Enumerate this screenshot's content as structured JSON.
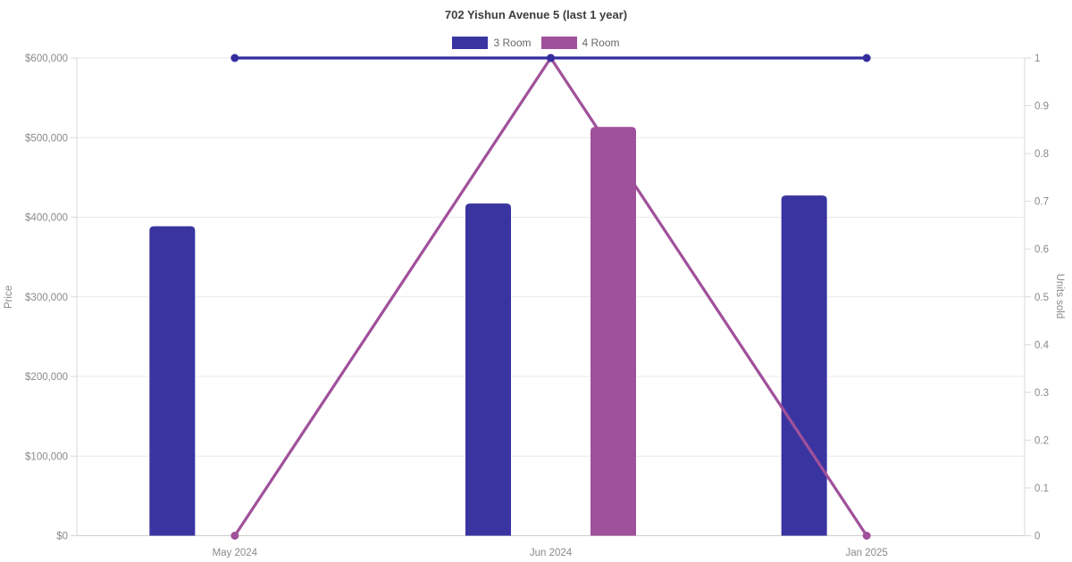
{
  "page": {
    "title": "702 Yishun Avenue 5 (last 1 year)"
  },
  "chart_data": {
    "type": "bar",
    "title": "702 Yishun Avenue 5 (last 1 year)",
    "subtitle": "",
    "categories": [
      "May 2024",
      "Jun 2024",
      "Jan 2025"
    ],
    "bar_series": [
      {
        "name": "3 Room",
        "color": "#3a34a1",
        "axis": "left",
        "values": [
          388600,
          417200,
          427300
        ]
      },
      {
        "name": "4 Room",
        "color": "#a0519b",
        "axis": "left",
        "values": [
          null,
          513500,
          null
        ]
      }
    ],
    "line_series": [
      {
        "name": "3 Room",
        "color": "#332d9e",
        "axis": "right",
        "values": [
          1,
          1,
          1
        ]
      },
      {
        "name": "4 Room",
        "color": "#a0519b",
        "axis": "right",
        "values": [
          0,
          1,
          0
        ]
      }
    ],
    "y_left": {
      "label": "Price",
      "min": 0,
      "max": 600000,
      "tick_step": 100000,
      "tick_labels": [
        "$0",
        "$100,000",
        "$200,000",
        "$300,000",
        "$400,000",
        "$500,000",
        "$600,000"
      ]
    },
    "y_right": {
      "label": "Units sold",
      "min": 0,
      "max": 1,
      "tick_step": 0.1,
      "tick_labels": [
        "0",
        "0.1",
        "0.2",
        "0.3",
        "0.4",
        "0.5",
        "0.6",
        "0.7",
        "0.8",
        "0.9",
        "1"
      ]
    },
    "legend": [
      "3 Room",
      "4 Room"
    ],
    "legend_position": "top",
    "grid": true,
    "background": "#ffffff"
  }
}
